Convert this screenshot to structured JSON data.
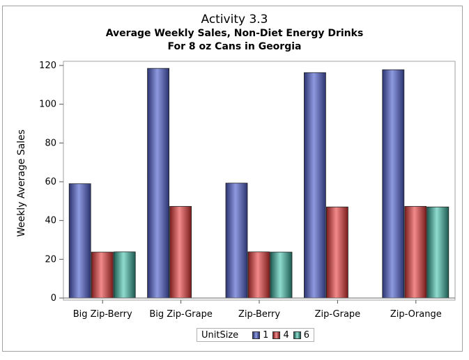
{
  "chart_data": {
    "type": "bar",
    "title": "Activity 3.3",
    "subtitle": [
      "Average Weekly Sales, Non-Diet Energy Drinks",
      "For 8 oz Cans in Georgia"
    ],
    "xlabel": "",
    "ylabel": "Weekly Average Sales",
    "ylim": [
      0,
      120
    ],
    "yticks": [
      0,
      20,
      40,
      60,
      80,
      100,
      120
    ],
    "categories": [
      "Big Zip-Berry",
      "Big Zip-Grape",
      "Zip-Berry",
      "Zip-Grape",
      "Zip-Orange"
    ],
    "legend_title": "UnitSize",
    "legend_position": "bottom",
    "grid": false,
    "series": [
      {
        "name": "1",
        "color": "#6b79c9",
        "values": [
          59,
          118.5,
          59.3,
          116.3,
          117.8
        ]
      },
      {
        "name": "4",
        "color": "#e05a5a",
        "values": [
          23.7,
          47.3,
          23.8,
          47,
          47.3
        ]
      },
      {
        "name": "6",
        "color": "#52b8a8",
        "values": [
          23.8,
          null,
          23.7,
          null,
          47
        ]
      }
    ]
  }
}
